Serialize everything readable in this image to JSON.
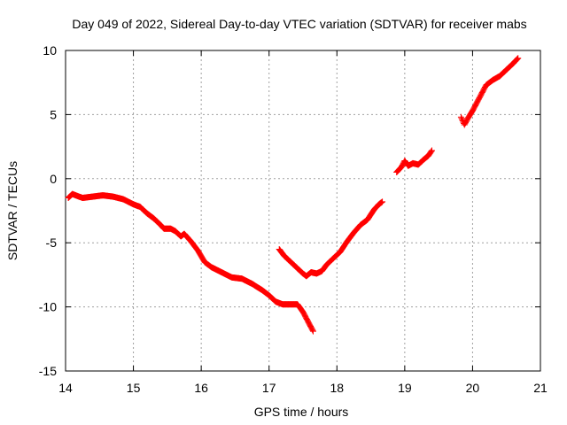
{
  "chart_data": {
    "type": "scatter",
    "title": "Day 049 of 2022, Sidereal Day-to-day VTEC variation (SDTVAR) for receiver mabs",
    "xlabel": "GPS time / hours",
    "ylabel": "SDTVAR / TECUs",
    "xlim": [
      14,
      21
    ],
    "ylim": [
      -15,
      10
    ],
    "xticks": [
      14,
      15,
      16,
      17,
      18,
      19,
      20,
      21
    ],
    "yticks": [
      -15,
      -10,
      -5,
      0,
      5,
      10
    ],
    "xtick_labels": [
      "14",
      "15",
      "16",
      "17",
      "18",
      "19",
      "20",
      "21"
    ],
    "ytick_labels": [
      "-15",
      "-10",
      "-5",
      "0",
      "5",
      "10"
    ],
    "grid": true,
    "marker": "+",
    "color": "#ff0000",
    "series": [
      {
        "name": "segment-1",
        "x": [
          14.04,
          14.1,
          14.15,
          14.25,
          14.4,
          14.55,
          14.7,
          14.85,
          15.0,
          15.1,
          15.2,
          15.3,
          15.4,
          15.45,
          15.55,
          15.62,
          15.7,
          15.75,
          15.85,
          15.95,
          16.05,
          16.15,
          16.3,
          16.45,
          16.6,
          16.75,
          16.9,
          17.0,
          17.1,
          17.2,
          17.3,
          17.42,
          17.5,
          17.58,
          17.65
        ],
        "y": [
          -1.5,
          -1.2,
          -1.3,
          -1.5,
          -1.4,
          -1.3,
          -1.4,
          -1.6,
          -2.0,
          -2.2,
          -2.7,
          -3.1,
          -3.6,
          -3.9,
          -3.9,
          -4.1,
          -4.5,
          -4.3,
          -4.9,
          -5.6,
          -6.5,
          -6.9,
          -7.3,
          -7.7,
          -7.8,
          -8.2,
          -8.7,
          -9.1,
          -9.6,
          -9.8,
          -9.8,
          -9.8,
          -10.4,
          -11.2,
          -11.9
        ]
      },
      {
        "name": "segment-2",
        "x": [
          17.15,
          17.22,
          17.3,
          17.4,
          17.5,
          17.55,
          17.62,
          17.7,
          17.78,
          17.85,
          17.95,
          18.05,
          18.15,
          18.25,
          18.35,
          18.45,
          18.55,
          18.62,
          18.67
        ],
        "y": [
          -5.5,
          -6.0,
          -6.4,
          -6.9,
          -7.4,
          -7.6,
          -7.3,
          -7.4,
          -7.2,
          -6.7,
          -6.2,
          -5.7,
          -4.9,
          -4.2,
          -3.6,
          -3.2,
          -2.4,
          -2.0,
          -1.8
        ]
      },
      {
        "name": "segment-3",
        "x": [
          18.88,
          18.95,
          19.0,
          19.05,
          19.12,
          19.2,
          19.28,
          19.35,
          19.4
        ],
        "y": [
          0.5,
          0.9,
          1.4,
          1.0,
          1.2,
          1.1,
          1.5,
          1.8,
          2.2
        ]
      },
      {
        "name": "segment-4",
        "x": [
          19.83,
          19.88,
          19.93,
          20.0,
          20.1,
          20.2,
          20.3,
          20.4,
          20.5,
          20.6,
          20.67
        ],
        "y": [
          4.8,
          4.2,
          4.7,
          5.3,
          6.3,
          7.3,
          7.7,
          8.0,
          8.5,
          9.0,
          9.4
        ]
      }
    ]
  }
}
